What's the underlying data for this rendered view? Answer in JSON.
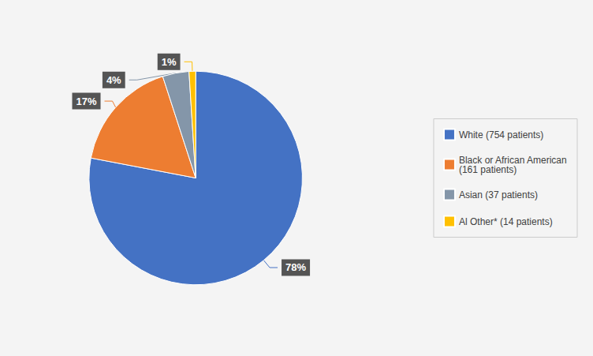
{
  "chart_data": {
    "type": "pie",
    "categories": [
      "White (754 patients)",
      "Black or African American\n(161 patients)",
      "Asian (37 patients)",
      "Al Other* (14 patients)"
    ],
    "values": [
      78,
      17,
      4,
      1
    ],
    "value_labels": [
      "78%",
      "17%",
      "4%",
      "1%"
    ],
    "colors": [
      "#4472C4",
      "#ED7D31",
      "#8496A9",
      "#FFC000"
    ],
    "data_labels": true,
    "legend": "right"
  }
}
